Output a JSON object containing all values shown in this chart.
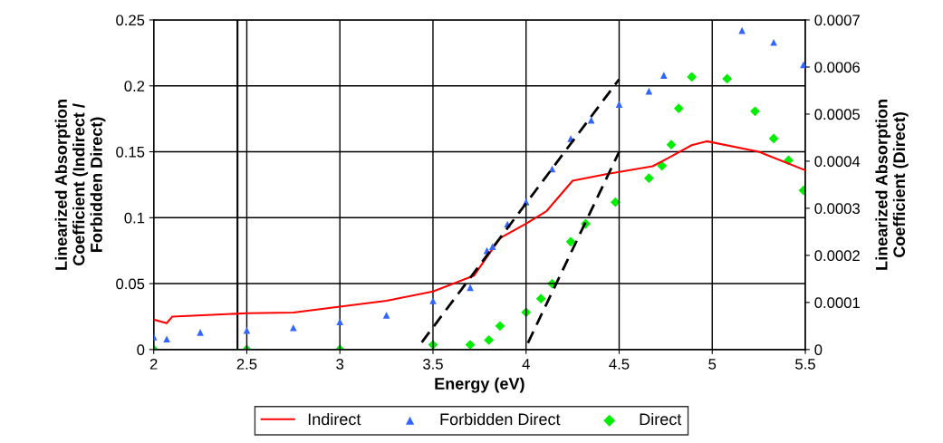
{
  "chart_data": {
    "type": "scatter",
    "xlabel": "Energy (eV)",
    "ylabel": "Linearized Absorption\nCoefficient (Indirect /\nForbidden Direct)",
    "y2label": "Linearized Absorption\nCoefficient (Direct)",
    "xlim": [
      2,
      5.5
    ],
    "xticks": [
      2,
      2.5,
      3,
      3.5,
      4,
      4.5,
      5,
      5.5
    ],
    "ylim": [
      0,
      0.25
    ],
    "yticks": [
      0,
      0.05,
      0.1,
      0.15,
      0.2,
      0.25
    ],
    "y2lim": [
      0,
      0.0007
    ],
    "y2ticks": [
      0,
      0.0001,
      0.0002,
      0.0003,
      0.0004,
      0.0005,
      0.0006,
      0.0007
    ],
    "grid": true,
    "legend": "bottom",
    "ref_lines": [
      {
        "axis": "x",
        "value": 2.45,
        "color": "#000000"
      }
    ],
    "series": [
      {
        "name": "Indirect",
        "type": "line",
        "color": "#ff0000",
        "marker": "none",
        "line_style": "solid",
        "x": [
          2,
          2.07,
          2.1,
          2.5,
          2.75,
          3.25,
          3.5,
          3.72,
          3.86,
          4.0,
          4.11,
          4.25,
          4.43,
          4.68,
          4.76,
          4.89,
          4.97,
          5.25,
          5.5
        ],
        "values": [
          0.0227,
          0.02,
          0.025,
          0.0275,
          0.028,
          0.037,
          0.044,
          0.056,
          0.0845,
          0.0955,
          0.105,
          0.128,
          0.133,
          0.139,
          0.145,
          0.155,
          0.158,
          0.15,
          0.136
        ]
      },
      {
        "name": "Forbidden Direct",
        "color": "#3366ff",
        "marker": "triangle",
        "x": [
          2,
          2.07,
          2.25,
          2.5,
          2.75,
          3.0,
          3.25,
          3.5,
          3.7,
          3.79,
          3.82,
          3.9,
          4.0,
          4.14,
          4.24,
          4.35,
          4.5,
          4.66,
          4.74,
          4.95,
          5.16,
          5.33,
          5.49
        ],
        "values": [
          0.0096,
          0.008,
          0.013,
          0.0145,
          0.0165,
          0.021,
          0.026,
          0.037,
          0.047,
          0.075,
          0.078,
          0.095,
          0.112,
          0.137,
          0.16,
          0.174,
          0.186,
          0.196,
          0.208,
          null,
          0.242,
          0.233,
          0.216
        ]
      },
      {
        "name": "Direct",
        "color": "#00ee00",
        "marker": "diamond",
        "axis": "y2",
        "x": [
          2,
          2.5,
          3.0,
          3.5,
          3.7,
          3.8,
          3.86,
          4.0,
          4.08,
          4.14,
          4.24,
          4.32,
          4.48,
          4.66,
          4.73,
          4.78,
          4.82,
          4.89,
          4.97,
          5.08,
          5.23,
          5.33,
          5.41,
          5.49
        ],
        "values": [
          0,
          0,
          0,
          1e-05,
          1e-05,
          2e-05,
          5e-05,
          7.9e-05,
          0.000108,
          0.00014,
          0.000229,
          0.000267,
          0.000313,
          0.000364,
          0.00039,
          0.000435,
          0.000512,
          0.000579,
          null,
          0.000575,
          0.000506,
          0.000448,
          0.000402,
          0.000338
        ]
      },
      {
        "type": "line",
        "color": "#000000",
        "marker": "none",
        "line_style": "dashed",
        "x": [
          3.44,
          4.5
        ],
        "values": [
          0.0055,
          0.205
        ]
      },
      {
        "type": "line",
        "color": "#000000",
        "marker": "none",
        "line_style": "dashed",
        "x": [
          4.01,
          4.5
        ],
        "values": [
          0.005,
          0.15
        ]
      }
    ]
  }
}
